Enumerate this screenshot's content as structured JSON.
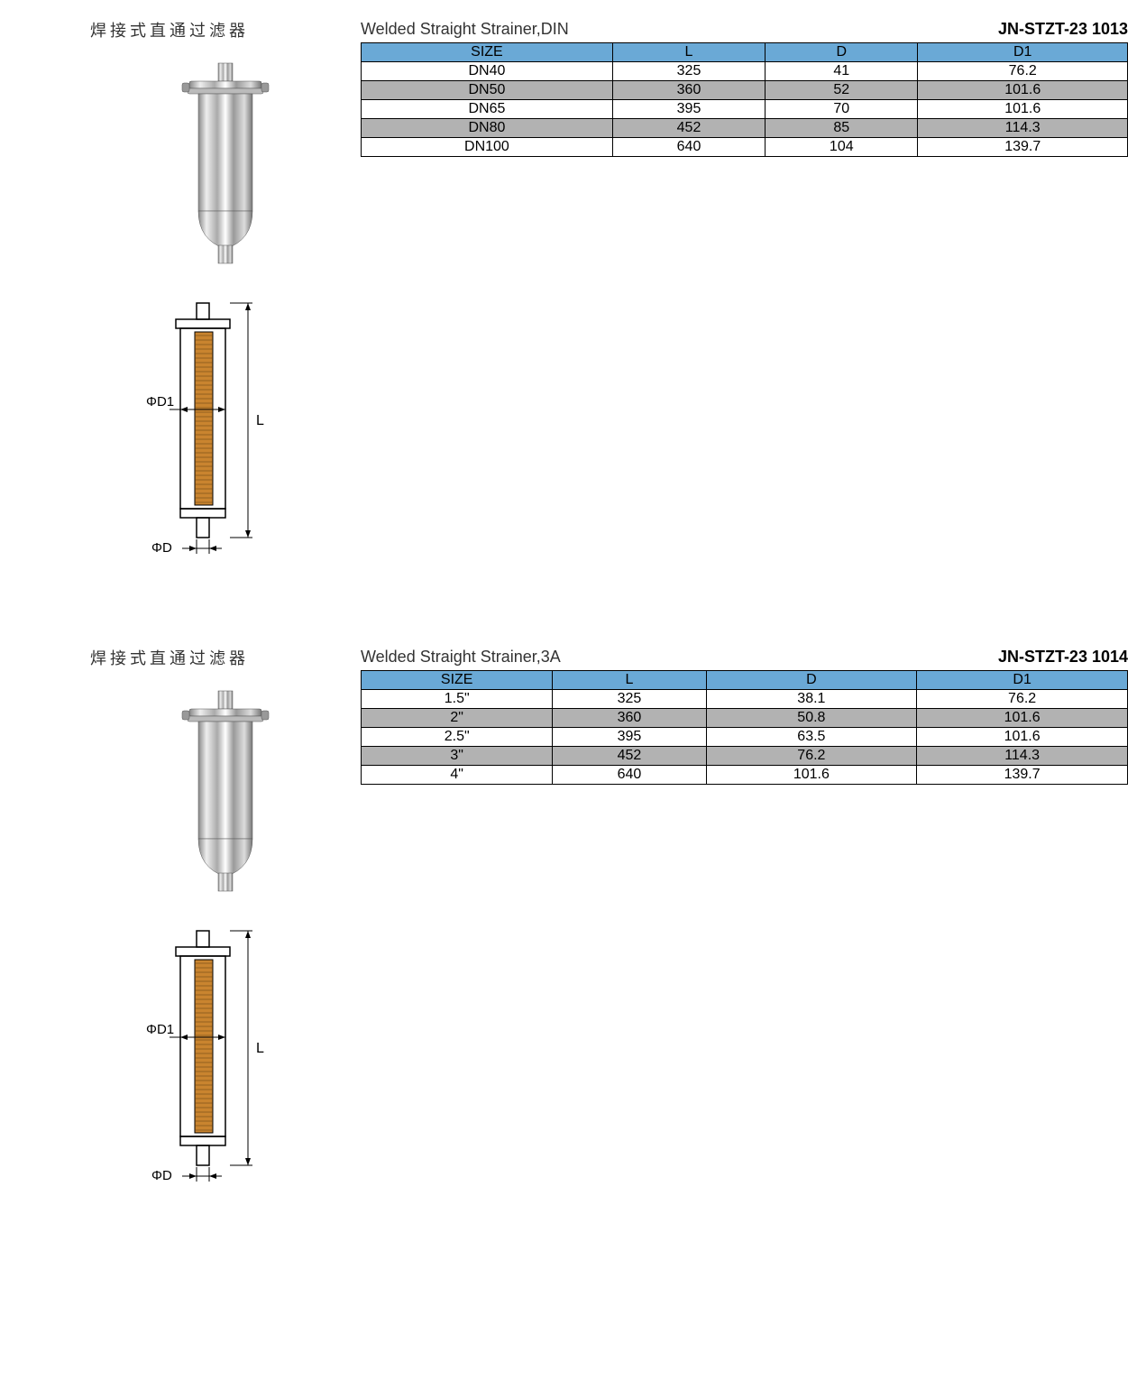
{
  "sections": [
    {
      "cn_title": "焊接式直通过滤器",
      "en_title": "Welded Straight Strainer,DIN",
      "part_number": "JN-STZT-23 1013",
      "diagram_labels": {
        "d1": "ΦD1",
        "d": "ΦD",
        "l": "L"
      },
      "table": {
        "header_bg": "#6aa9d6",
        "row_alt_bg": "#b2b2b2",
        "columns": [
          "SIZE",
          "L",
          "D",
          "D1"
        ],
        "rows": [
          [
            "DN40",
            "325",
            "41",
            "76.2"
          ],
          [
            "DN50",
            "360",
            "52",
            "101.6"
          ],
          [
            "DN65",
            "395",
            "70",
            "101.6"
          ],
          [
            "DN80",
            "452",
            "85",
            "114.3"
          ],
          [
            "DN100",
            "640",
            "104",
            "139.7"
          ]
        ]
      }
    },
    {
      "cn_title": "焊接式直通过滤器",
      "en_title": "Welded Straight Strainer,3A",
      "part_number": "JN-STZT-23 1014",
      "diagram_labels": {
        "d1": "ΦD1",
        "d": "ΦD",
        "l": "L"
      },
      "table": {
        "header_bg": "#6aa9d6",
        "row_alt_bg": "#b2b2b2",
        "columns": [
          "SIZE",
          "L",
          "D",
          "D1"
        ],
        "rows": [
          [
            "1.5\"",
            "325",
            "38.1",
            "76.2"
          ],
          [
            "2\"",
            "360",
            "50.8",
            "101.6"
          ],
          [
            "2.5\"",
            "395",
            "63.5",
            "101.6"
          ],
          [
            "3\"",
            "452",
            "76.2",
            "114.3"
          ],
          [
            "4\"",
            "640",
            "101.6",
            "139.7"
          ]
        ]
      }
    }
  ]
}
